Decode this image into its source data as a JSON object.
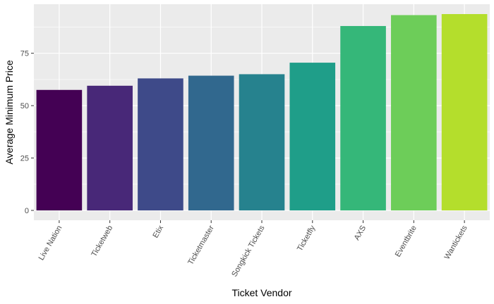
{
  "chart_data": {
    "type": "bar",
    "xlabel": "Ticket Vendor",
    "ylabel": "Average Minimum Price",
    "categories": [
      "Live Nation",
      "Ticketweb",
      "Etix",
      "Ticketmaster",
      "Songkick Tickets",
      "Ticketfly",
      "AXS",
      "Eventbrite",
      "Wantickets"
    ],
    "values": [
      57.5,
      59.5,
      63,
      64.3,
      65,
      70.5,
      88,
      93.2,
      93.7
    ],
    "colors": [
      "#440154",
      "#482878",
      "#3E4A89",
      "#31688E",
      "#26828E",
      "#1F9E89",
      "#35B779",
      "#6DCD59",
      "#B4DE2C",
      "#FDE725"
    ],
    "yticks": [
      0,
      25,
      50,
      75
    ],
    "ylim": [
      -4.7,
      98.4
    ],
    "grid": true,
    "legend": "none",
    "panel_background": "#EBEBEB",
    "grid_color": "#FFFFFF"
  }
}
